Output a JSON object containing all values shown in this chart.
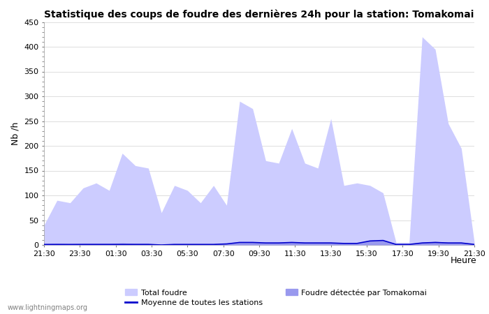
{
  "title": "Statistique des coups de foudre des dernières 24h pour la station: Tomakomai",
  "ylabel": "Nb /h",
  "xlabel": "Heure",
  "watermark": "www.lightningmaps.org",
  "ylim": [
    0,
    450
  ],
  "x_tick_labels": [
    "21:30",
    "23:30",
    "01:30",
    "03:30",
    "05:30",
    "07:30",
    "09:30",
    "11:30",
    "13:30",
    "15:30",
    "17:30",
    "19:30",
    "21:30"
  ],
  "total_foudre_color": "#ccccff",
  "foudre_tomakomai_color": "#9999ee",
  "moyenne_color": "#0000cc",
  "total_foudre_y": [
    40,
    90,
    85,
    115,
    125,
    110,
    185,
    160,
    155,
    65,
    120,
    110,
    85,
    120,
    80,
    290,
    275,
    170,
    165,
    235,
    165,
    155,
    255,
    120,
    125,
    120,
    105,
    5,
    5,
    420,
    395,
    245,
    195,
    5
  ],
  "foudre_tomakomai_y": [
    2,
    3,
    2,
    3,
    3,
    3,
    4,
    3,
    3,
    1,
    2,
    2,
    2,
    2,
    2,
    5,
    5,
    5,
    5,
    6,
    5,
    5,
    5,
    3,
    3,
    8,
    9,
    2,
    1,
    5,
    7,
    5,
    5,
    1
  ],
  "moyenne_y": [
    1,
    1,
    1,
    1,
    1,
    1,
    1,
    1,
    1,
    0,
    1,
    1,
    1,
    1,
    2,
    5,
    5,
    4,
    4,
    5,
    4,
    4,
    4,
    3,
    3,
    8,
    9,
    1,
    1,
    4,
    5,
    4,
    4,
    1
  ],
  "n_points": 34
}
